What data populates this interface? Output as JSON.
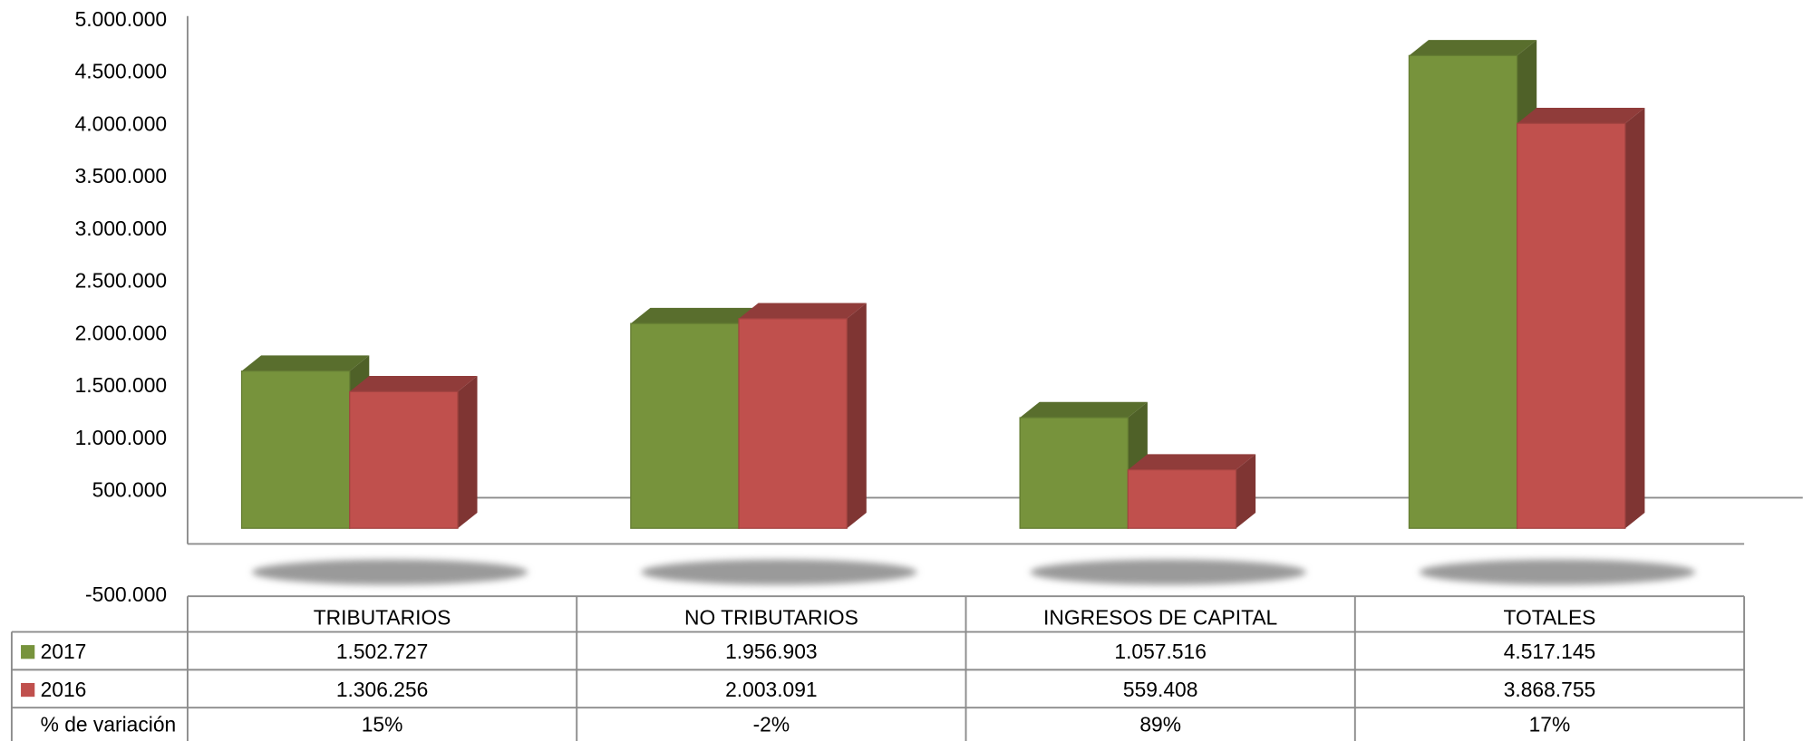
{
  "chart_data": {
    "type": "bar3d",
    "categories": [
      "TRIBUTARIOS",
      "NO TRIBUTARIOS",
      "INGRESOS DE CAPITAL",
      "TOTALES"
    ],
    "series": [
      {
        "name": "2017",
        "color": "#77933c",
        "values": [
          1502727,
          1956903,
          1057516,
          4517145
        ],
        "value_labels": [
          "1.502.727",
          "1.956.903",
          "1.057.516",
          "4.517.145"
        ]
      },
      {
        "name": "2016",
        "color": "#c0504d",
        "values": [
          1306256,
          2003091,
          559408,
          3868755
        ],
        "value_labels": [
          "1.306.256",
          "2.003.091",
          "559.408",
          "3.868.755"
        ]
      }
    ],
    "variation": {
      "name": "% de variación",
      "value_labels": [
        "15%",
        "-2%",
        "89%",
        "17%"
      ]
    },
    "ylim": [
      -500000,
      5000000
    ],
    "yticks": [
      {
        "value": -500000,
        "label": "-500.000"
      },
      {
        "value": 500000,
        "label": "500.000"
      },
      {
        "value": 1000000,
        "label": "1.000.000"
      },
      {
        "value": 1500000,
        "label": "1.500.000"
      },
      {
        "value": 2000000,
        "label": "2.000.000"
      },
      {
        "value": 2500000,
        "label": "2.500.000"
      },
      {
        "value": 3000000,
        "label": "3.000.000"
      },
      {
        "value": 3500000,
        "label": "3.500.000"
      },
      {
        "value": 4000000,
        "label": "4.000.000"
      },
      {
        "value": 4500000,
        "label": "4.500.000"
      },
      {
        "value": 5000000,
        "label": "5.000.000"
      }
    ]
  }
}
